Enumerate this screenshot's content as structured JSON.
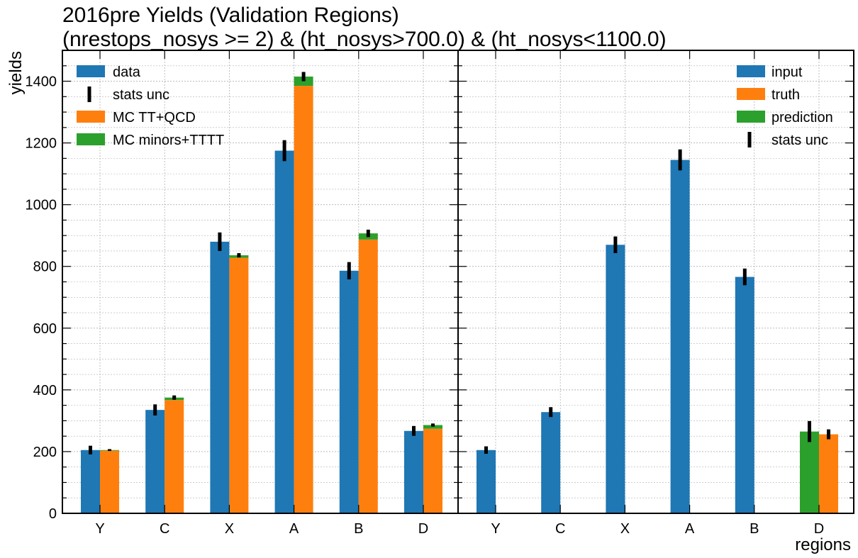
{
  "colors": {
    "blue": "#1f77b4",
    "orange": "#ff7f0e",
    "green": "#2ca02c",
    "black": "#000000",
    "grid": "#b0b0b0"
  },
  "chart_data": {
    "title_line1": "2016pre Yields (Validation Regions)",
    "title_line2": "(nrestops_nosys >= 2) & (ht_nosys>700.0) & (ht_nosys<1100.0)",
    "ylabel": "yields",
    "xlabel": "regions",
    "ylim": [
      0,
      1500
    ],
    "yticks": [
      0,
      200,
      400,
      600,
      800,
      1000,
      1200,
      1400
    ],
    "grid": true,
    "categories": [
      "Y",
      "C",
      "X",
      "A",
      "B",
      "D"
    ],
    "panels": [
      {
        "type": "bar",
        "legend_position": "top-left",
        "legend": [
          {
            "label": "data",
            "kind": "patch",
            "color": "blue"
          },
          {
            "label": "stats unc",
            "kind": "errbar"
          },
          {
            "label": "MC TT+QCD",
            "kind": "patch",
            "color": "orange"
          },
          {
            "label": "MC minors+TTTT",
            "kind": "patch",
            "color": "green"
          }
        ],
        "series": [
          {
            "name": "data",
            "color": "blue",
            "slot": 0,
            "values": [
              205,
              335,
              880,
              1175,
              786,
              267
            ],
            "errors": [
              14,
              18,
              30,
              34,
              28,
              16
            ]
          },
          {
            "name": "MC TT+QCD",
            "color": "orange",
            "slot": 1,
            "values": [
              203,
              367,
              828,
              1385,
              887,
              274
            ],
            "errors": [
              null,
              null,
              null,
              null,
              null,
              null
            ]
          },
          {
            "name": "MC minors+TTTT",
            "color": "green",
            "slot": 1,
            "stacked_on": "MC TT+QCD",
            "values": [
              2,
              8,
              8,
              30,
              20,
              12
            ],
            "errors": [
              3,
              7,
              7,
              15,
              12,
              5
            ]
          }
        ]
      },
      {
        "type": "bar",
        "legend_position": "top-right",
        "legend": [
          {
            "label": "input",
            "kind": "patch",
            "color": "blue"
          },
          {
            "label": "truth",
            "kind": "patch",
            "color": "orange"
          },
          {
            "label": "prediction",
            "kind": "patch",
            "color": "green"
          },
          {
            "label": "stats unc",
            "kind": "errbar"
          }
        ],
        "series": [
          {
            "name": "input",
            "color": "blue",
            "slot": 0,
            "values": [
              205,
              328,
              870,
              1145,
              766,
              null
            ],
            "errors": [
              12,
              16,
              27,
              34,
              27,
              null
            ]
          },
          {
            "name": "prediction",
            "color": "green",
            "slot": 0,
            "values": [
              null,
              null,
              null,
              null,
              null,
              265
            ],
            "errors": [
              null,
              null,
              null,
              null,
              null,
              34
            ]
          },
          {
            "name": "truth",
            "color": "orange",
            "slot": 1,
            "values": [
              null,
              null,
              null,
              null,
              null,
              256
            ],
            "errors": [
              null,
              null,
              null,
              null,
              null,
              16
            ]
          }
        ]
      }
    ]
  }
}
